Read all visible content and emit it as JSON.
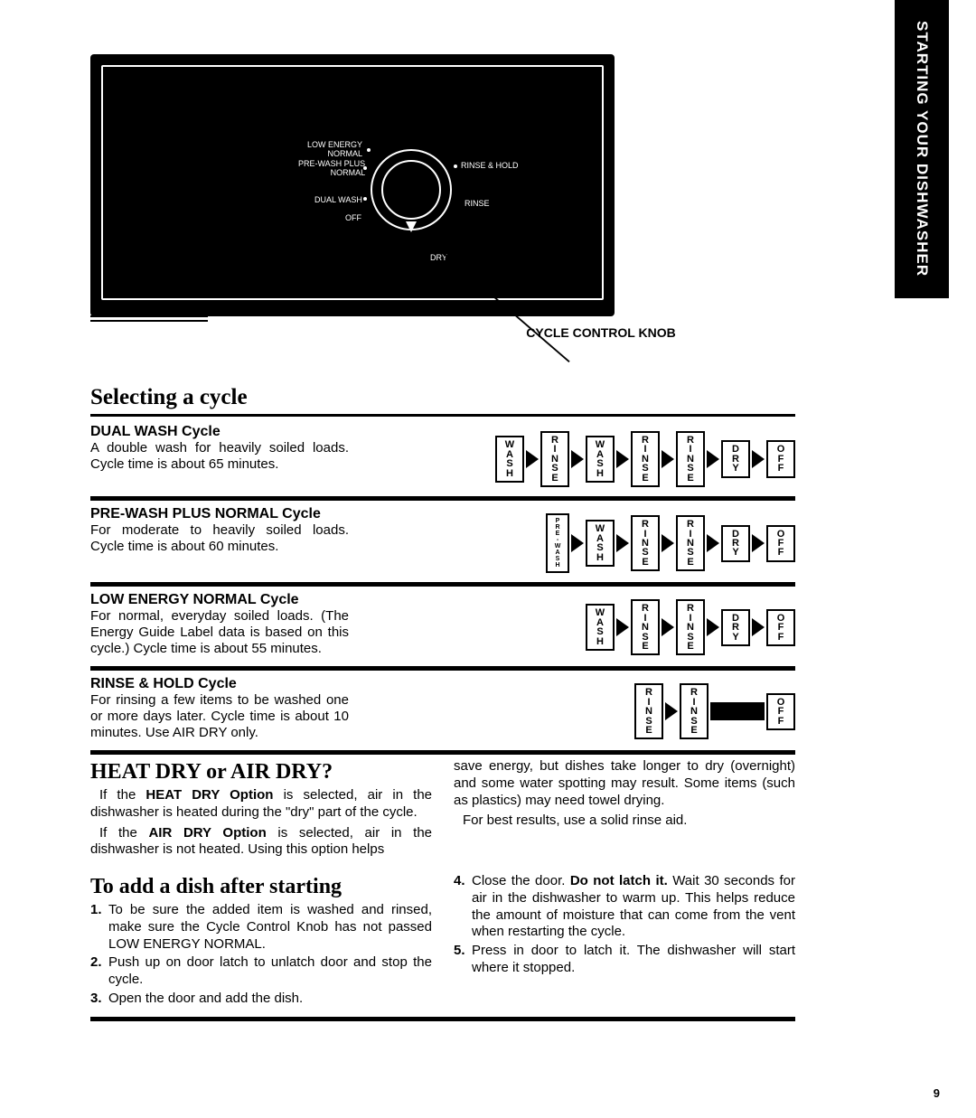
{
  "tab_label": "STARTING YOUR DISHWASHER",
  "panel": {
    "labels": {
      "low_energy": "LOW ENERGY\nNORMAL",
      "prewash": "PRE-WASH PLUS\nNORMAL",
      "dual": "DUAL WASH",
      "off": "OFF",
      "rinse_hold": "RINSE & HOLD",
      "rinse": "RINSE",
      "dry": "DRY"
    }
  },
  "cycle_caption": "CYCLE CONTROL KNOB",
  "section_title": "Selecting a cycle",
  "step_labels": {
    "wash": "WASH",
    "rinse": "RINSE",
    "prewash": "PRE-WASH",
    "dry": "DRY",
    "off": "OFF"
  },
  "cycles": [
    {
      "title": "DUAL WASH Cycle",
      "desc": "A double wash for heavily soiled loads. Cycle time is about 65 minutes.",
      "steps": [
        "wash",
        "rinse",
        "wash",
        "rinse",
        "rinse",
        "dry",
        "off"
      ]
    },
    {
      "title": "PRE-WASH PLUS NORMAL Cycle",
      "desc": "For moderate to heavily soiled loads. Cycle time is about 60 minutes.",
      "steps": [
        "prewash",
        "wash",
        "rinse",
        "rinse",
        "dry",
        "off"
      ]
    },
    {
      "title": "LOW ENERGY NORMAL Cycle",
      "desc": "For normal, everyday soiled loads. (The Energy Guide Label data is based on this cycle.) Cycle time is about 55 minutes.",
      "steps": [
        "wash",
        "rinse",
        "rinse",
        "dry",
        "off"
      ]
    },
    {
      "title": "RINSE & HOLD Cycle",
      "desc": "For rinsing a few items to be washed one or more days later. Cycle time is about 10 minutes. Use AIR DRY only.",
      "steps": [
        "rinse",
        "rinse",
        "bar",
        "off"
      ]
    }
  ],
  "heat_section": {
    "title": "HEAT DRY or AIR DRY?",
    "left": [
      "If the <b>HEAT DRY Option</b> is selected, air in the dishwasher is heated during the \"dry\" part of the cycle.",
      "If the <b>AIR DRY Option</b> is selected, air in the dishwasher is not heated. Using this option helps"
    ],
    "right": [
      "save energy, but dishes take longer to dry (overnight) and some water spotting may result. Some items (such as plastics) may need towel drying.",
      "For best results, use a solid rinse aid."
    ]
  },
  "add_section": {
    "title": "To add a dish after starting",
    "left_steps": [
      "To be sure the added item is washed and rinsed, make sure the Cycle Control Knob has not passed LOW ENERGY NORMAL.",
      "Push up on door latch to unlatch door and stop the cycle.",
      "Open the door and add the dish."
    ],
    "right_steps": [
      "Close the door. <b>Do not latch it.</b> Wait 30 seconds for air in the dishwasher to warm up. This helps reduce the amount of moisture that can come from the vent when restarting the cycle.",
      "Press in door to latch it. The dishwasher will start where it stopped."
    ]
  },
  "page_number": "9"
}
